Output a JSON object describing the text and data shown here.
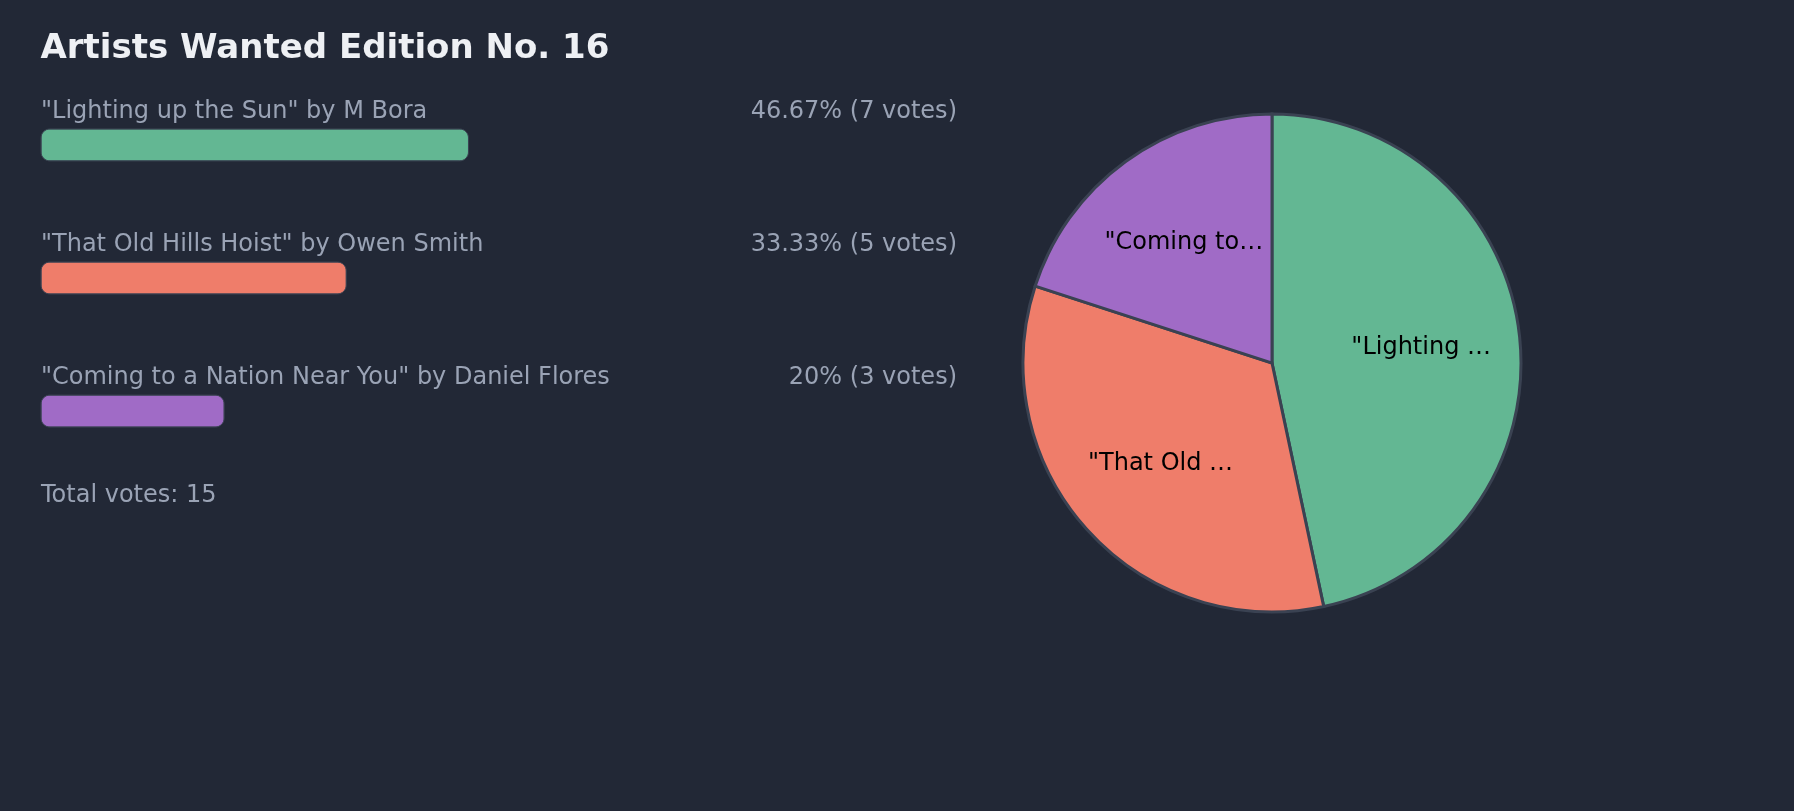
{
  "chart_data": [
    {
      "type": "bar",
      "orientation": "horizontal",
      "title": "Artists Wanted Edition No. 16",
      "categories": [
        "\"Lighting up the Sun\" by M Bora",
        "\"That Old Hills Hoist\" by Owen Smith",
        "\"Coming to a Nation Near You\" by Daniel Flores"
      ],
      "values": [
        46.67,
        33.33,
        20
      ],
      "colors": [
        "#63b793",
        "#ef7d6a",
        "#a06bc6"
      ],
      "value_labels": [
        "46.67% (7 votes)",
        "33.33% (5 votes)",
        "20% (3 votes)"
      ],
      "annotations": [
        "Total votes: 15"
      ]
    },
    {
      "type": "pie",
      "categories": [
        "\"Lighting …",
        "\"That Old …",
        "\"Coming to…"
      ],
      "values": [
        46.67,
        33.33,
        20
      ],
      "colors": [
        "#63b793",
        "#ef7d6a",
        "#a06bc6"
      ]
    }
  ]
}
